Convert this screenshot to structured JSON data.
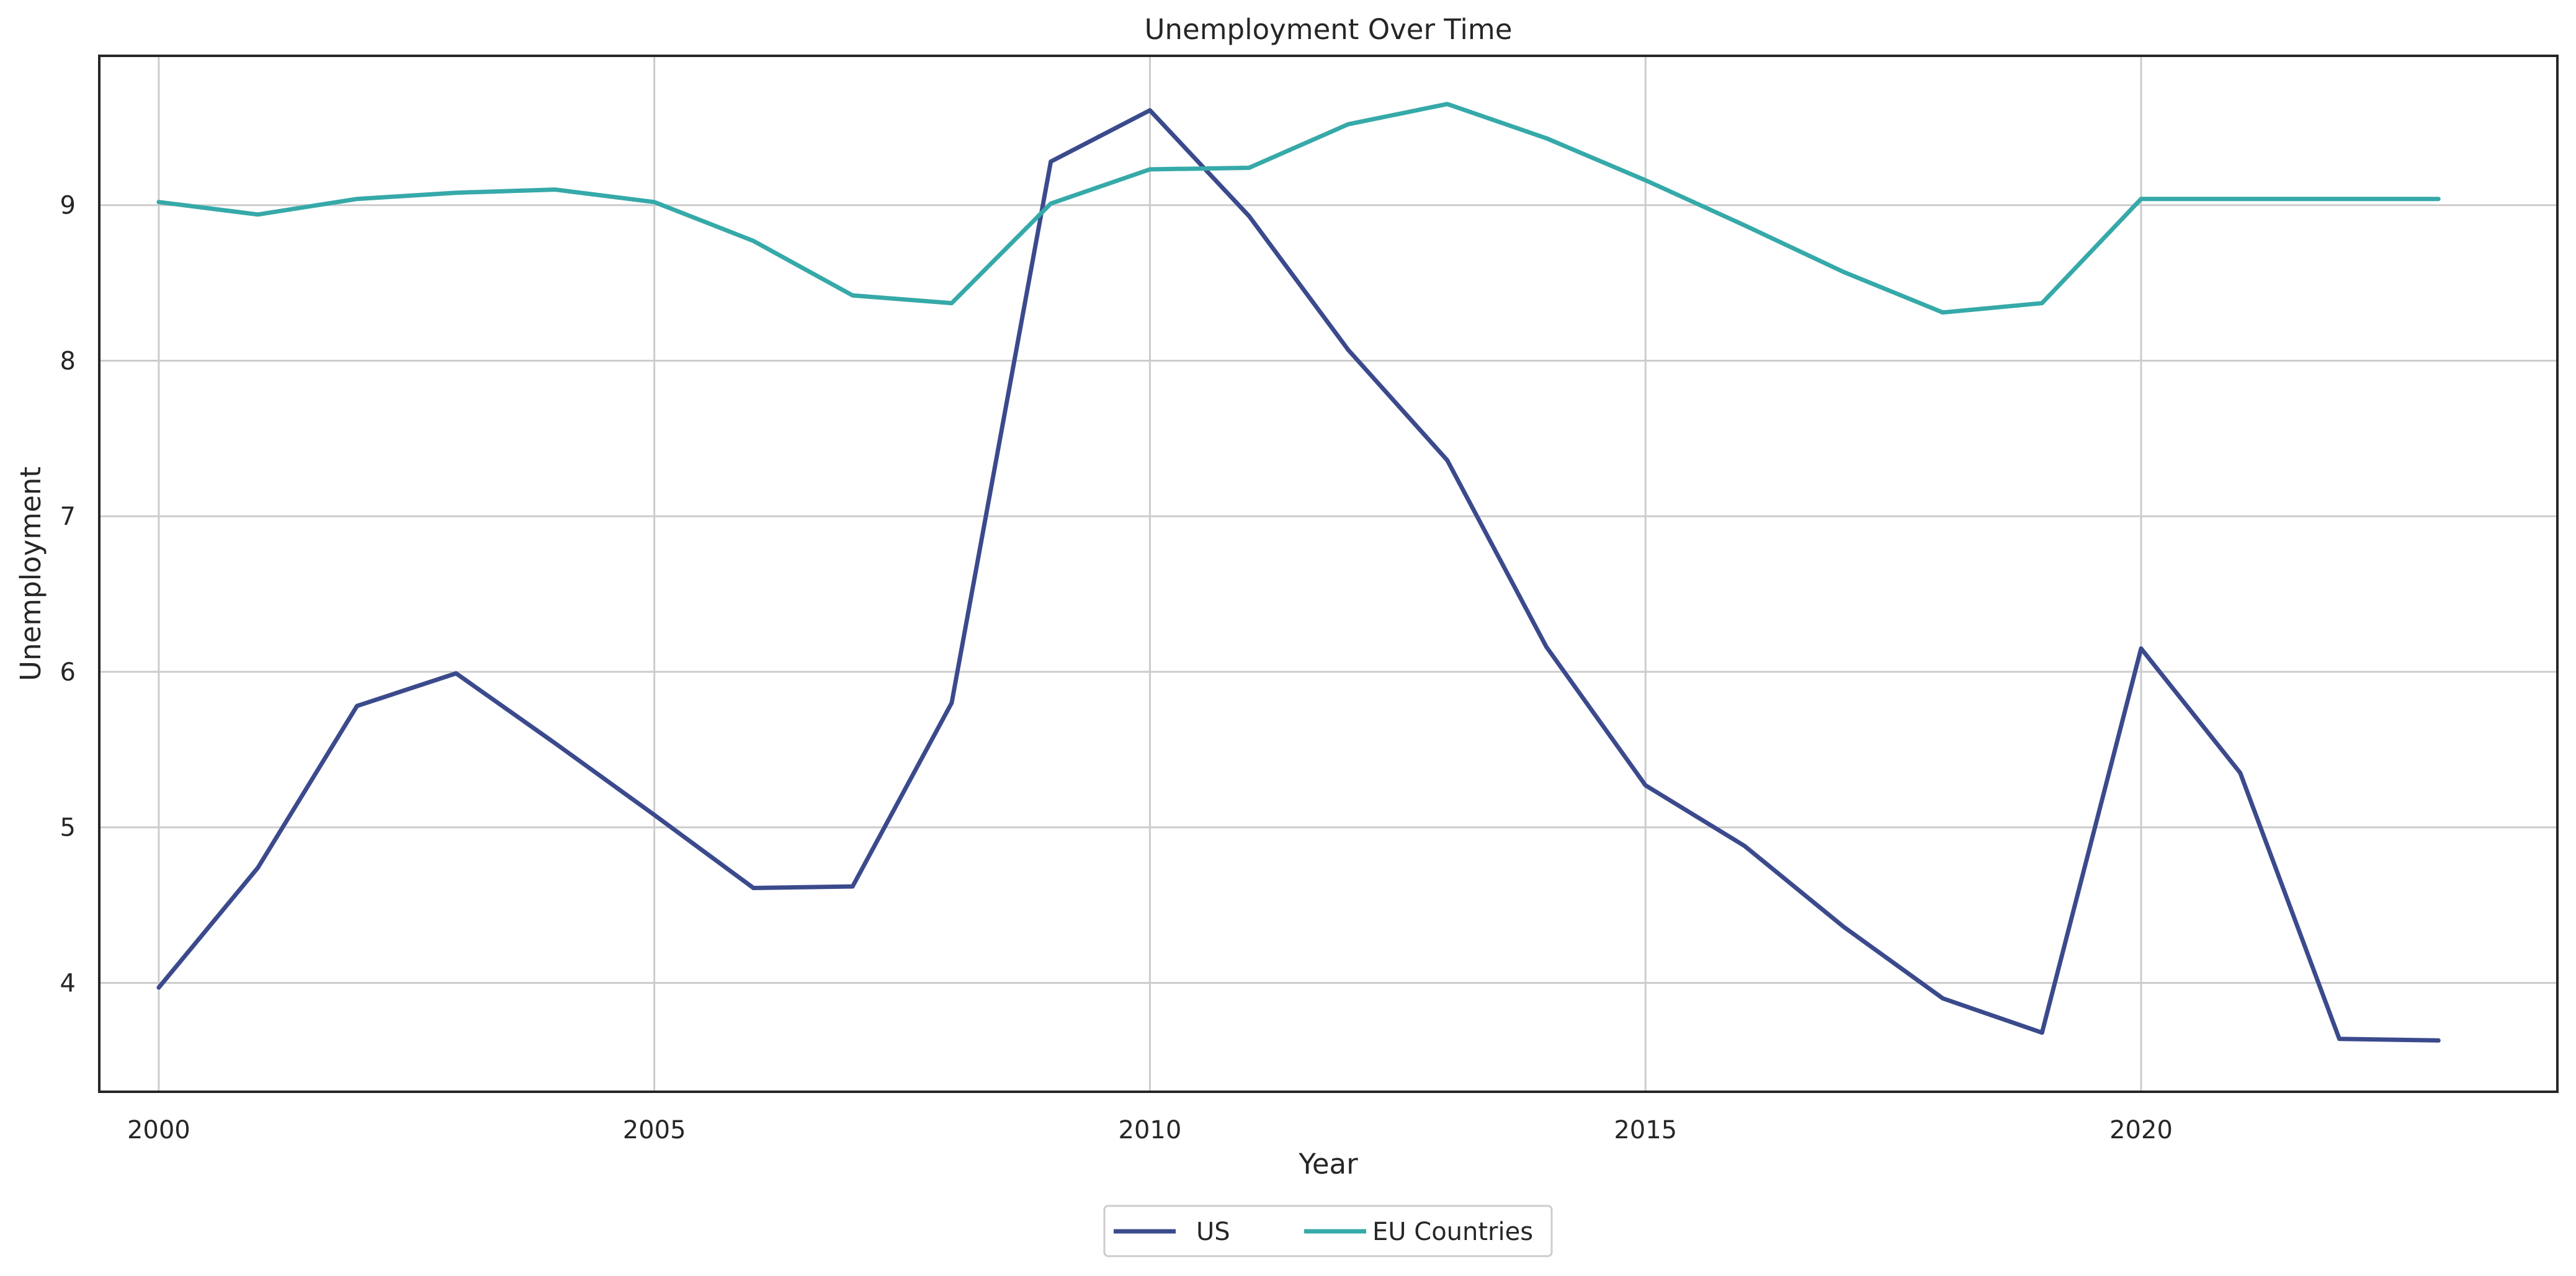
{
  "chart_data": {
    "type": "line",
    "title": "Unemployment Over Time",
    "xlabel": "Year",
    "ylabel": "Unemployment",
    "x": [
      2000,
      2001,
      2002,
      2003,
      2004,
      2005,
      2006,
      2007,
      2008,
      2009,
      2010,
      2011,
      2012,
      2013,
      2014,
      2015,
      2016,
      2017,
      2018,
      2019,
      2020,
      2021,
      2022,
      2023
    ],
    "series": [
      {
        "name": "US",
        "color": "#3b4a8c",
        "values": [
          3.97,
          4.74,
          5.78,
          5.99,
          5.54,
          5.08,
          4.61,
          4.62,
          5.8,
          9.28,
          9.61,
          8.93,
          8.07,
          7.36,
          6.16,
          5.27,
          4.88,
          4.36,
          3.9,
          3.68,
          6.15,
          5.35,
          3.64,
          3.63
        ]
      },
      {
        "name": "EU Countries",
        "color": "#36a9a9",
        "values": [
          9.02,
          8.94,
          9.04,
          9.08,
          9.1,
          9.02,
          8.77,
          8.42,
          8.37,
          9.01,
          9.23,
          9.24,
          9.52,
          9.65,
          9.43,
          9.16,
          8.87,
          8.57,
          8.31,
          8.37,
          9.04,
          9.04,
          9.04,
          9.04
        ]
      }
    ],
    "xticks": [
      2000,
      2005,
      2010,
      2015,
      2020
    ],
    "yticks": [
      4,
      5,
      6,
      7,
      8,
      9
    ],
    "xlim": [
      1999.4,
      2024.2
    ],
    "ylim": [
      3.3,
      9.96
    ],
    "grid": true,
    "legend_position": "bottom-center"
  }
}
